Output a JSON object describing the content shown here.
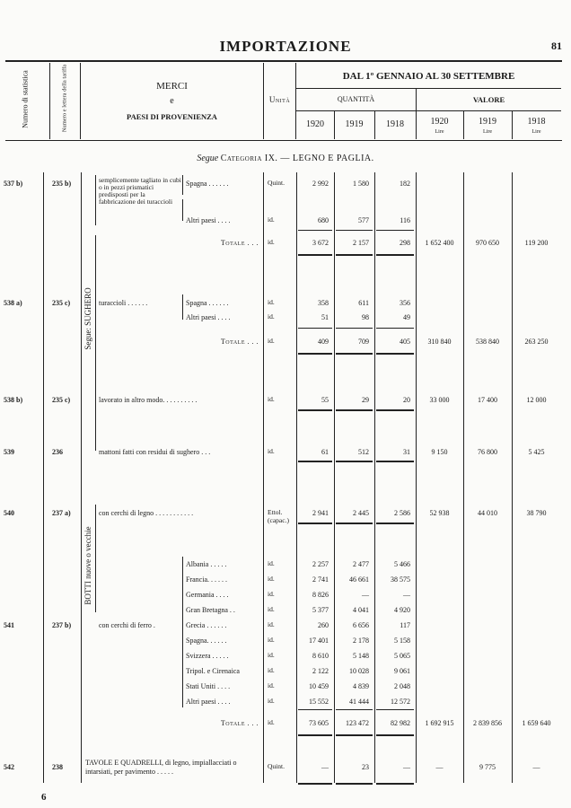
{
  "page": {
    "title": "IMPORTAZIONE",
    "number": "81",
    "footer_mark": "6"
  },
  "header": {
    "col_stat": "Numero di statistica",
    "col_tariff": "Numero e lettera della tariffa",
    "merci_1": "MERCI",
    "merci_2": "e",
    "merci_3": "PAESI DI PROVENIENZA",
    "unit": "Unità",
    "period": "DAL 1º GENNAIO AL 30 SETTEMBRE",
    "quantity": "QUANTITÀ",
    "value": "VALORE",
    "years": [
      "1920",
      "1919",
      "1918"
    ],
    "currency": "Lire"
  },
  "category": {
    "prefix": "Segue",
    "label": "Categoria IX. — LEGNO E PAGLIA."
  },
  "group_labels": {
    "sughero": "Segue: SUGHERO",
    "botti": "BOTTI nuove o vecchie"
  },
  "rows": [
    {
      "stat": "537 b)",
      "tariff": "235 b)",
      "desc": "semplicemente tagliato in cubi o in pezzi prismatici predisposti per la fabbricazione dei turaccioli",
      "country": "Spagna . . . . . .",
      "unit": "Quint.",
      "q": [
        "2 992",
        "1 580",
        "182"
      ],
      "v": [
        "",
        "",
        ""
      ]
    },
    {
      "stat": "",
      "tariff": "",
      "desc": "",
      "country": "Altri paesi . . . .",
      "unit": "id.",
      "q": [
        "680",
        "577",
        "116"
      ],
      "v": [
        "",
        "",
        ""
      ]
    },
    {
      "stat": "",
      "tariff": "",
      "desc": "",
      "country": "Totale . . .",
      "unit": "id.",
      "q": [
        "3 672",
        "2 157",
        "298"
      ],
      "v": [
        "1 652 400",
        "970 650",
        "119 200"
      ],
      "total": true
    },
    {
      "stat": "538 a)",
      "tariff": "235 c)",
      "desc": "turaccioli . . . . . .",
      "country": "Spagna . . . . . .",
      "unit": "id.",
      "q": [
        "358",
        "611",
        "356"
      ],
      "v": [
        "",
        "",
        ""
      ]
    },
    {
      "stat": "",
      "tariff": "",
      "desc": "",
      "country": "Altri paesi . . . .",
      "unit": "id.",
      "q": [
        "51",
        "98",
        "49"
      ],
      "v": [
        "",
        "",
        ""
      ]
    },
    {
      "stat": "",
      "tariff": "",
      "desc": "",
      "country": "Totale . . .",
      "unit": "id.",
      "q": [
        "409",
        "709",
        "405"
      ],
      "v": [
        "310 840",
        "538 840",
        "263 250"
      ],
      "total": true
    },
    {
      "stat": "538 b)",
      "tariff": "235 c)",
      "desc": "lavorato in altro modo. . . . . . . . . .",
      "country": "",
      "unit": "id.",
      "q": [
        "55",
        "29",
        "20"
      ],
      "v": [
        "33 000",
        "17 400",
        "12 000"
      ]
    },
    {
      "stat": "539",
      "tariff": "236",
      "desc": "mattoni fatti con residui di sughero . . .",
      "country": "",
      "unit": "id.",
      "q": [
        "61",
        "512",
        "31"
      ],
      "v": [
        "9 150",
        "76 800",
        "5 425"
      ]
    },
    {
      "stat": "540",
      "tariff": "237 a)",
      "desc": "con cerchi di legno . . . . . . . . . . .",
      "country": "",
      "unit": "Ettol. (capac.)",
      "q": [
        "2 941",
        "2 445",
        "2 586"
      ],
      "v": [
        "52 938",
        "44 010",
        "38 790"
      ]
    },
    {
      "stat": "",
      "tariff": "",
      "desc": "",
      "country": "Albania . . . . .",
      "unit": "id.",
      "q": [
        "2 257",
        "2 477",
        "5 466"
      ],
      "v": [
        "",
        "",
        ""
      ]
    },
    {
      "stat": "",
      "tariff": "",
      "desc": "",
      "country": "Francia. . . . . .",
      "unit": "id.",
      "q": [
        "2 741",
        "46 661",
        "38 575"
      ],
      "v": [
        "",
        "",
        ""
      ]
    },
    {
      "stat": "",
      "tariff": "",
      "desc": "",
      "country": "Germania . . . .",
      "unit": "id.",
      "q": [
        "8 826",
        "—",
        "—"
      ],
      "v": [
        "",
        "",
        ""
      ]
    },
    {
      "stat": "",
      "tariff": "",
      "desc": "",
      "country": "Gran Bretagna . .",
      "unit": "id.",
      "q": [
        "5 377",
        "4 041",
        "4 920"
      ],
      "v": [
        "",
        "",
        ""
      ]
    },
    {
      "stat": "541",
      "tariff": "237 b)",
      "desc": "con cerchi di ferro .",
      "country": "Grecia . . . . . .",
      "unit": "id.",
      "q": [
        "260",
        "6 656",
        "117"
      ],
      "v": [
        "",
        "",
        ""
      ]
    },
    {
      "stat": "",
      "tariff": "",
      "desc": "",
      "country": "Spagna. . . . . .",
      "unit": "id.",
      "q": [
        "17 401",
        "2 178",
        "5 158"
      ],
      "v": [
        "",
        "",
        ""
      ]
    },
    {
      "stat": "",
      "tariff": "",
      "desc": "",
      "country": "Svizzera . . . . .",
      "unit": "id.",
      "q": [
        "8 610",
        "5 148",
        "5 065"
      ],
      "v": [
        "",
        "",
        ""
      ]
    },
    {
      "stat": "",
      "tariff": "",
      "desc": "",
      "country": "Tripol. e Cirenaica",
      "unit": "id.",
      "q": [
        "2 122",
        "10 028",
        "9 061"
      ],
      "v": [
        "",
        "",
        ""
      ]
    },
    {
      "stat": "",
      "tariff": "",
      "desc": "",
      "country": "Stati Uniti . . . .",
      "unit": "id.",
      "q": [
        "10 459",
        "4 839",
        "2 048"
      ],
      "v": [
        "",
        "",
        ""
      ]
    },
    {
      "stat": "",
      "tariff": "",
      "desc": "",
      "country": "Altri paesi . . . .",
      "unit": "id.",
      "q": [
        "15 552",
        "41 444",
        "12 572"
      ],
      "v": [
        "",
        "",
        ""
      ]
    },
    {
      "stat": "",
      "tariff": "",
      "desc": "",
      "country": "Totale . . .",
      "unit": "id.",
      "q": [
        "73 605",
        "123 472",
        "82 982"
      ],
      "v": [
        "1 692 915",
        "2 839 856",
        "1 659 640"
      ],
      "total": true
    },
    {
      "stat": "542",
      "tariff": "238",
      "desc": "TAVOLE E QUADRELLI, di legno, impiallacciati o intarsiati, per pavimento . . . . .",
      "country": "",
      "unit": "Quint.",
      "q": [
        "—",
        "23",
        "—"
      ],
      "v": [
        "—",
        "9 775",
        "—"
      ]
    }
  ]
}
